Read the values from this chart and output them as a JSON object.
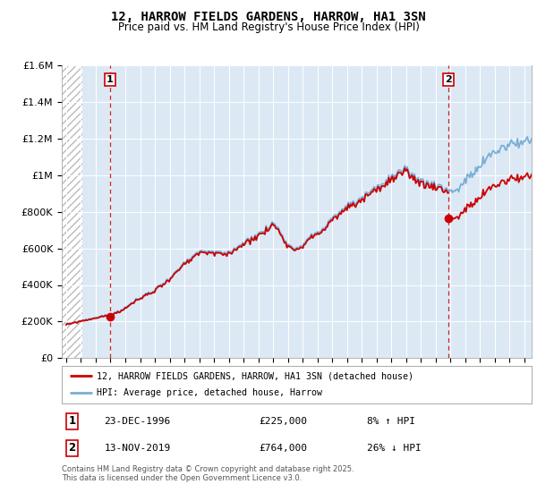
{
  "title": "12, HARROW FIELDS GARDENS, HARROW, HA1 3SN",
  "subtitle": "Price paid vs. HM Land Registry's House Price Index (HPI)",
  "background_color": "#ffffff",
  "plot_bg_color": "#dce9f5",
  "red_line_color": "#cc0000",
  "blue_line_color": "#7aafd4",
  "dashed_line_color": "#cc0000",
  "sale1_year": 1996.97,
  "sale1_price": 225000,
  "sale1_label": "1",
  "sale1_date": "23-DEC-1996",
  "sale1_hpi_diff": "8% ↑ HPI",
  "sale2_year": 2019.87,
  "sale2_price": 764000,
  "sale2_label": "2",
  "sale2_date": "13-NOV-2019",
  "sale2_hpi_diff": "26% ↓ HPI",
  "legend_line1": "12, HARROW FIELDS GARDENS, HARROW, HA1 3SN (detached house)",
  "legend_line2": "HPI: Average price, detached house, Harrow",
  "footnote": "Contains HM Land Registry data © Crown copyright and database right 2025.\nThis data is licensed under the Open Government Licence v3.0.",
  "ylim": [
    0,
    1600000
  ],
  "xlim_start": 1993.7,
  "xlim_end": 2025.5,
  "yticks": [
    0,
    200000,
    400000,
    600000,
    800000,
    1000000,
    1200000,
    1400000,
    1600000
  ],
  "ytick_labels": [
    "£0",
    "£200K",
    "£400K",
    "£600K",
    "£800K",
    "£1M",
    "£1.2M",
    "£1.4M",
    "£1.6M"
  ]
}
